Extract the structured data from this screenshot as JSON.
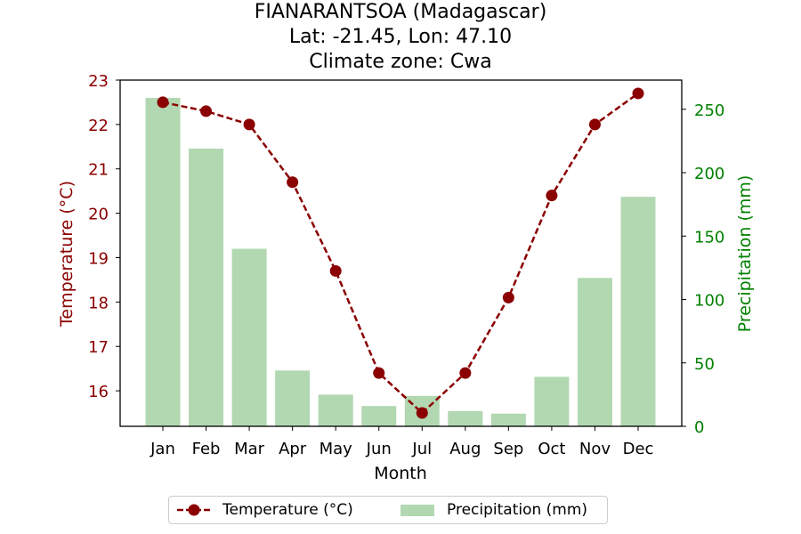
{
  "chart_data": {
    "type": "bar",
    "title_lines": [
      "FIANARANTSOA (Madagascar)",
      "Lat: -21.45, Lon: 47.10",
      "Climate zone: Cwa"
    ],
    "xlabel": "Month",
    "categories": [
      "Jan",
      "Feb",
      "Mar",
      "Apr",
      "May",
      "Jun",
      "Jul",
      "Aug",
      "Sep",
      "Oct",
      "Nov",
      "Dec"
    ],
    "temperature": {
      "name": "Temperature (°C)",
      "axis_label": "Temperature (°C)",
      "axis": "left",
      "type": "line",
      "style": "dashed with circle markers",
      "color": "#8b0000",
      "values": [
        22.5,
        22.3,
        22.0,
        20.7,
        18.7,
        16.4,
        15.5,
        16.4,
        18.1,
        20.4,
        22.0,
        22.7
      ],
      "ylim": [
        15.2,
        23.0
      ],
      "ticks": [
        16,
        17,
        18,
        19,
        20,
        21,
        22,
        23
      ]
    },
    "precipitation": {
      "name": "Precipitation (mm)",
      "axis_label": "Precipitation (mm)",
      "axis": "right",
      "type": "bar",
      "color": "#b2d8b2",
      "values": [
        259,
        219,
        140,
        44,
        25,
        16,
        24,
        12,
        10,
        39,
        117,
        181
      ],
      "ylim": [
        0,
        273
      ],
      "ticks": [
        0,
        50,
        100,
        150,
        200,
        250
      ]
    },
    "legend_position": "bottom-center"
  }
}
